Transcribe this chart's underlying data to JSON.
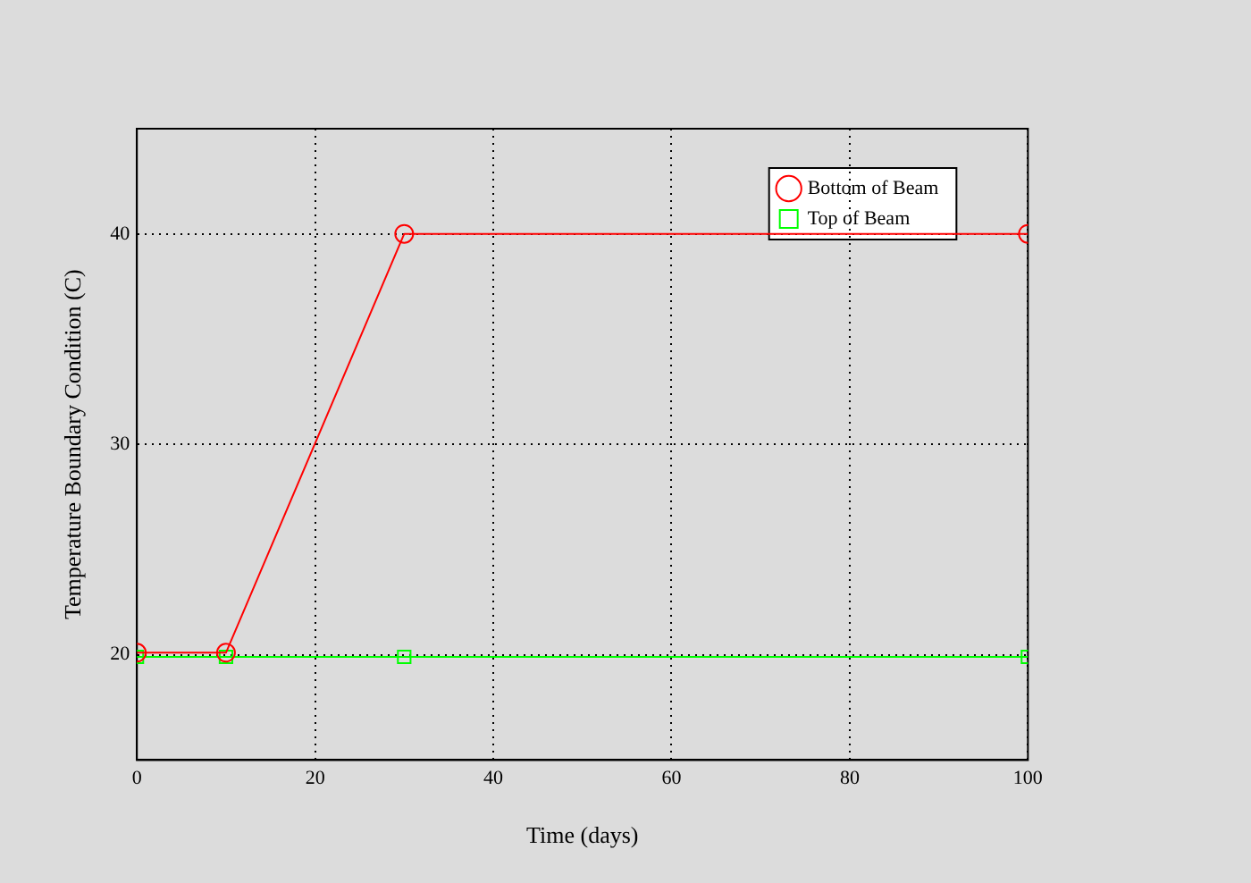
{
  "chart_data": {
    "type": "line",
    "xlabel": "Time (days)",
    "ylabel": "Temperature Boundary Condition (C)",
    "xlim": [
      0,
      100
    ],
    "ylim": [
      15,
      45
    ],
    "xticks": [
      0,
      20,
      40,
      60,
      80,
      100
    ],
    "yticks": [
      20,
      30,
      40
    ],
    "grid": true,
    "legend": "top right",
    "series": [
      {
        "name": "Bottom of Beam",
        "color": "#ff0000",
        "marker": "circle",
        "x": [
          0,
          10,
          30,
          100
        ],
        "values": [
          20.1,
          20.1,
          40,
          40
        ]
      },
      {
        "name": "Top of Beam",
        "color": "#00ff00",
        "marker": "square",
        "x": [
          0,
          10,
          30,
          100
        ],
        "values": [
          19.9,
          19.9,
          19.9,
          19.9
        ]
      }
    ]
  }
}
